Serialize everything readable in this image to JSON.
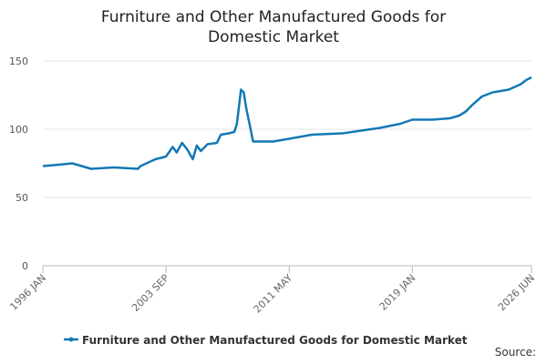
{
  "chart_data": {
    "type": "line",
    "title": "Furniture and Other Manufactured Goods for Domestic Market",
    "source": "Source:",
    "x": [
      "1996-01",
      "1997-01",
      "1997-11",
      "1999-01",
      "2000-06",
      "2001-12",
      "2002-02",
      "2003-01",
      "2003-09",
      "2004-02",
      "2004-05",
      "2004-09",
      "2005-01",
      "2005-05",
      "2005-08",
      "2005-11",
      "2006-04",
      "2006-11",
      "2007-02",
      "2007-08",
      "2007-12",
      "2008-02",
      "2008-05",
      "2008-07",
      "2008-09",
      "2008-12",
      "2009-02",
      "2010-05",
      "2011-05",
      "2012-10",
      "2014-09",
      "2017-01",
      "2018-04",
      "2019-01",
      "2020-04",
      "2021-05",
      "2021-12",
      "2022-05",
      "2022-10",
      "2023-05",
      "2024-01",
      "2025-01",
      "2025-10",
      "2026-02",
      "2026-06"
    ],
    "series": [
      {
        "name": "Furniture and Other Manufactured Goods for Domestic Market",
        "color": "#1478b4",
        "values": [
          73,
          74,
          75,
          71,
          72,
          71,
          73,
          78,
          80,
          87,
          83,
          90,
          85,
          78,
          88,
          84,
          89,
          90,
          96,
          97,
          98,
          104,
          129,
          127,
          115,
          101,
          91,
          91,
          93,
          96,
          97,
          101,
          104,
          107,
          107,
          108,
          110,
          113,
          118,
          124,
          127,
          129,
          133,
          136,
          138
        ]
      }
    ],
    "xlim": [
      "1996-01",
      "2026-06"
    ],
    "xticks": [
      {
        "value": "1996-01",
        "label": "1996 JAN"
      },
      {
        "value": "2003-09",
        "label": "2003 SEP"
      },
      {
        "value": "2011-05",
        "label": "2011 MAY"
      },
      {
        "value": "2019-01",
        "label": "2019 JAN"
      },
      {
        "value": "2026-06",
        "label": "2026 JUN"
      }
    ],
    "ylim": [
      0,
      150
    ],
    "yticks": [
      0,
      50,
      100,
      150
    ],
    "grid": true
  }
}
